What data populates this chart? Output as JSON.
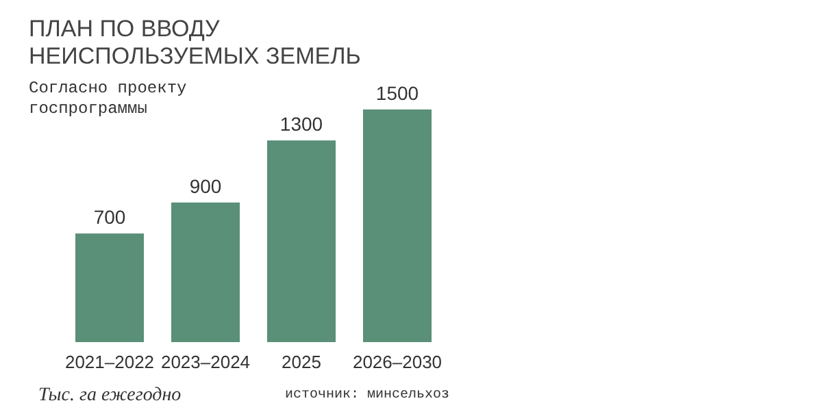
{
  "chart_data": {
    "type": "bar",
    "title": "ПЛАН ПО ВВОДУ\nНЕИСПОЛЬЗУЕМЫХ ЗЕМЕЛЬ",
    "subtitle": "Согласно проекту\nгоспрограммы",
    "categories": [
      "2021–2022",
      "2023–2024",
      "2025",
      "2026–2030"
    ],
    "values": [
      700,
      900,
      1300,
      1500
    ],
    "color": "#5a8f78",
    "data_labels": true,
    "annotations": [
      "Тыс. га ежегодно",
      "источник: минсельхоз"
    ]
  }
}
